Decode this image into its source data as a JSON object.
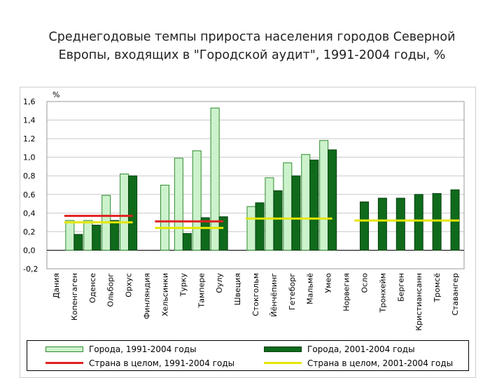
{
  "title_lines": [
    "Среднегодовые темпы прироста населения городов Северной",
    "Европы, входящих в \"Городской аудит\", 1991-2004 годы, %"
  ],
  "chart_data": {
    "type": "bar",
    "ylabel": "%",
    "ylim": [
      -0.2,
      1.6
    ],
    "yticks": [
      "-0,2",
      "0,0",
      "0,2",
      "0,4",
      "0,6",
      "0,8",
      "1,0",
      "1,2",
      "1,4",
      "1,6"
    ],
    "grid": true,
    "categories": [
      "Дания",
      "Копенгаген",
      "Оденсе",
      "Ольборг",
      "Орхус",
      "Финляндия",
      "Хельсинки",
      "Турку",
      "Тампере",
      "Оулу",
      "Швеция",
      "Стокгольм",
      "Йёнчёпинг",
      "Гетеборг",
      "Мальмё",
      "Умео",
      "Норвегия",
      "Осло",
      "Тронхейм",
      "Берген",
      "Кристиансанн",
      "Тромсё",
      "Ставангер"
    ],
    "series": [
      {
        "name": "Города, 1991-2004 годы",
        "color": "#ccf2cc",
        "stroke": "#2e8b2e",
        "values": [
          null,
          0.32,
          0.32,
          0.59,
          0.82,
          null,
          0.7,
          0.99,
          1.07,
          1.53,
          null,
          0.47,
          0.78,
          0.94,
          1.03,
          1.18,
          null,
          null,
          null,
          null,
          null,
          null,
          null
        ]
      },
      {
        "name": "Города, 2001-2004 годы",
        "color": "#0f6b1b",
        "stroke": "#064010",
        "values": [
          null,
          0.17,
          0.27,
          0.32,
          0.8,
          null,
          null,
          0.18,
          0.35,
          0.36,
          null,
          0.51,
          0.64,
          0.8,
          0.97,
          1.08,
          null,
          0.52,
          0.56,
          0.56,
          0.6,
          0.61,
          0.65
        ]
      }
    ],
    "country_lines": [
      {
        "name": "Страна в целом, 1991-2004 годы",
        "color": "#e02020",
        "segments": [
          {
            "from": "Копенгаген",
            "to": "Орхус",
            "value": 0.37
          },
          {
            "from": "Хельсинки",
            "to": "Оулу",
            "value": 0.31
          }
        ]
      },
      {
        "name": "Страна в целом, 2001-2004 годы",
        "color": "#e6e600",
        "segments": [
          {
            "from": "Копенгаген",
            "to": "Орхус",
            "value": 0.3
          },
          {
            "from": "Хельсинки",
            "to": "Оулу",
            "value": 0.24
          },
          {
            "from": "Стокгольм",
            "to": "Умео",
            "value": 0.34
          },
          {
            "from": "Осло",
            "to": "Ставангер",
            "value": 0.32
          }
        ]
      }
    ]
  }
}
